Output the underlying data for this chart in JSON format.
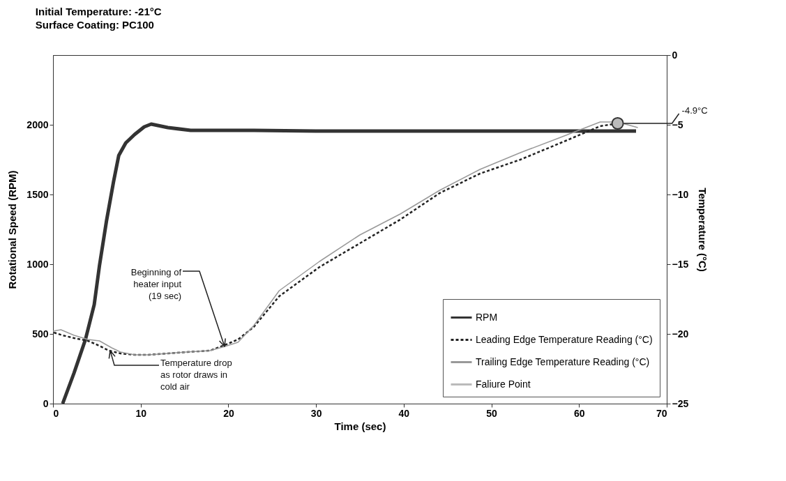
{
  "chart_data": {
    "type": "line",
    "title": "Initial Temperature: -21°C",
    "subtitle": "Surface Coating: PC100",
    "xlabel": "Time (sec)",
    "ylabel": "Rotational Speed (RPM)",
    "y2label": "Temperature (°C)",
    "xlim": [
      0,
      70
    ],
    "xticks": [
      0,
      10,
      20,
      30,
      40,
      50,
      60,
      70
    ],
    "ylim": [
      0,
      2500
    ],
    "yticks": [
      0,
      500,
      1000,
      1500,
      2000
    ],
    "y2lim": [
      -25,
      0
    ],
    "y2ticks": [
      -25,
      -20,
      -15,
      -10,
      -5,
      0
    ],
    "grid": false,
    "legend": "bottom right",
    "series": [
      {
        "name": "RPM",
        "color": "#333333",
        "line_style": "solid",
        "x": [
          1.1,
          2.4,
          3.7,
          4.7,
          5.3,
          6.1,
          6.9,
          7.5,
          8.3,
          9.3,
          10.4,
          11.2,
          13.1,
          15.7,
          22.9,
          30,
          40,
          50,
          60,
          66.5
        ],
        "values": [
          0,
          220,
          460,
          710,
          990,
          1310,
          1590,
          1780,
          1870,
          1930,
          1985,
          2005,
          1980,
          1960,
          1960,
          1955,
          1955,
          1955,
          1955,
          1955
        ]
      },
      {
        "name": "Leading Edge Temperature Reading (°C)",
        "color": "#222222",
        "line_style": "dashed",
        "axis": "y2",
        "x": [
          0.1,
          1.1,
          2.4,
          4,
          5.1,
          6.4,
          7.7,
          9.3,
          10.9,
          13.1,
          15.2,
          17.9,
          19.6,
          21.1,
          22.9,
          25.8,
          30.4,
          35,
          39.6,
          44.1,
          48.7,
          53.3,
          57.9,
          62.4,
          64.4
        ],
        "values": [
          -19.9,
          -20.1,
          -20.3,
          -20.5,
          -20.8,
          -21.2,
          -21.4,
          -21.5,
          -21.5,
          -21.4,
          -21.3,
          -21.2,
          -20.8,
          -20.4,
          -19.5,
          -17.3,
          -15.2,
          -13.5,
          -11.8,
          -9.9,
          -8.5,
          -7.5,
          -6.3,
          -5.1,
          -4.9
        ]
      },
      {
        "name": "Trailing Edge Temperature Reading (°C)",
        "color": "#999999",
        "line_style": "solid",
        "axis": "y2",
        "x": [
          0,
          0.9,
          2.4,
          4,
          5.3,
          6.7,
          7.7,
          9.3,
          10.9,
          13.1,
          15.2,
          17.9,
          19.6,
          21.1,
          22.9,
          25.8,
          30.4,
          35,
          39.6,
          44.1,
          48.7,
          53.3,
          57.9,
          62.4,
          64.4,
          66.7
        ],
        "values": [
          -19.8,
          -19.7,
          -20.1,
          -20.4,
          -20.5,
          -21,
          -21.3,
          -21.5,
          -21.5,
          -21.4,
          -21.3,
          -21.2,
          -20.9,
          -20.6,
          -19.4,
          -16.9,
          -14.8,
          -12.9,
          -11.4,
          -9.7,
          -8.2,
          -7,
          -5.9,
          -4.8,
          -4.8,
          -5.2
        ]
      },
      {
        "name": "Faliure Point",
        "type": "scatter",
        "marker": "circle",
        "color": "#bbbbbb",
        "axis": "y2",
        "x": [
          64.4
        ],
        "values": [
          -4.9
        ]
      }
    ],
    "annotations": [
      "Beginning of\nheater input\n(19 sec)",
      "Temperature drop\nas rotor draws in\ncold air",
      {
        "text": "-4.9°C",
        "x": 64.4,
        "y": 2010
      }
    ]
  }
}
